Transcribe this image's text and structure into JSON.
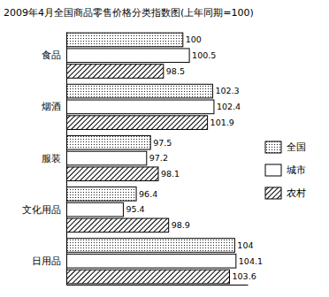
{
  "chart_data": {
    "type": "bar",
    "orientation": "horizontal",
    "title": "2009年4月全国商品零售价格分类指数图(上年同期=100)",
    "categories": [
      "食品",
      "烟酒",
      "服装",
      "文化用品",
      "日用品"
    ],
    "series": [
      {
        "name": "全国",
        "color": "#000000",
        "values": [
          100,
          102.3,
          97.5,
          96.4,
          104
        ]
      },
      {
        "name": "城市",
        "color": "#000000",
        "values": [
          100.5,
          102.4,
          97.2,
          95.4,
          104.1
        ]
      },
      {
        "name": "农村",
        "color": "#000000",
        "values": [
          98.5,
          101.9,
          98.1,
          98.9,
          103.6
        ]
      }
    ],
    "xlim": [
      91,
      105
    ],
    "xticks": [],
    "tick_labels": false,
    "grid": false,
    "data_labels": true,
    "legend": "right"
  }
}
